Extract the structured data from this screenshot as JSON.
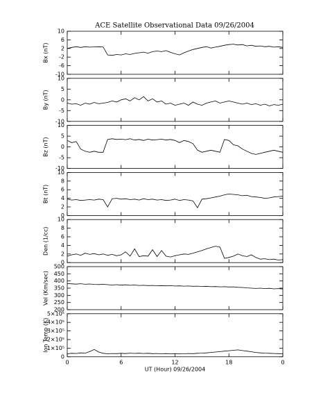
{
  "chart_data": [
    {
      "type": "line",
      "title": "ACE Satellite Observational Data   09/26/2004",
      "ylabel": "Bx (nT)",
      "ylim": [
        -10,
        10
      ],
      "yticks": [
        -10,
        -6,
        -2,
        2,
        6,
        10
      ],
      "color": "#000000",
      "x": [
        0,
        0.5,
        1,
        1.5,
        2,
        2.5,
        3,
        3.5,
        4,
        4.5,
        5,
        5.5,
        6,
        6.5,
        7,
        7.5,
        8,
        8.5,
        9,
        9.5,
        10,
        10.5,
        11,
        11.5,
        12,
        12.5,
        13,
        13.5,
        14,
        14.5,
        15,
        15.5,
        16,
        16.5,
        17,
        17.5,
        18,
        18.5,
        19,
        19.5,
        20,
        20.5,
        21,
        21.5,
        22,
        22.5,
        23,
        23.5,
        24
      ],
      "values": [
        2,
        2.5,
        2.8,
        2.5,
        2.8,
        2.6,
        2.7,
        2.8,
        2.7,
        -1,
        -1.2,
        -0.8,
        -1,
        -0.5,
        -0.8,
        -0.3,
        0,
        0.3,
        -0.2,
        0.5,
        0.8,
        0.5,
        1,
        0.2,
        -0.5,
        -1,
        0,
        0.8,
        1.5,
        2,
        2.5,
        2.8,
        2.2,
        2.6,
        3,
        3.5,
        3.8,
        4,
        3.6,
        3.8,
        3.2,
        3.5,
        3,
        3.2,
        2.8,
        3,
        2.6,
        2.8,
        2.5
      ]
    },
    {
      "type": "line",
      "ylabel": "By (nT)",
      "ylim": [
        -10,
        10
      ],
      "yticks": [
        -10,
        -5,
        0,
        5,
        10
      ],
      "color": "#000000",
      "x": [
        0,
        0.5,
        1,
        1.5,
        2,
        2.5,
        3,
        3.5,
        4,
        4.5,
        5,
        5.5,
        6,
        6.5,
        7,
        7.5,
        8,
        8.5,
        9,
        9.5,
        10,
        10.5,
        11,
        11.5,
        12,
        12.5,
        13,
        13.5,
        14,
        14.5,
        15,
        15.5,
        16,
        16.5,
        17,
        17.5,
        18,
        18.5,
        19,
        19.5,
        20,
        20.5,
        21,
        21.5,
        22,
        22.5,
        23,
        23.5,
        24
      ],
      "values": [
        -1.5,
        -2,
        -1.8,
        -2.5,
        -1.5,
        -2,
        -1.2,
        -1.8,
        -1.5,
        -1.2,
        -0.5,
        -1,
        0,
        0.5,
        -0.5,
        1,
        0,
        1.5,
        -0.5,
        0.5,
        -1,
        -0.5,
        -2,
        -1.5,
        -2.5,
        -2,
        -1.5,
        -2.5,
        -1,
        -2,
        -2.5,
        -1.5,
        -1,
        -0.5,
        -1.5,
        -1,
        -0.5,
        -1,
        -1.5,
        -2,
        -1.5,
        -2.2,
        -1.8,
        -2.5,
        -2,
        -2.8,
        -2.2,
        -2.5,
        -2
      ]
    },
    {
      "type": "line",
      "ylabel": "Bz (nT)",
      "ylim": [
        -10,
        10
      ],
      "yticks": [
        -10,
        -5,
        0,
        5,
        10
      ],
      "color": "#000000",
      "x": [
        0,
        0.5,
        1,
        1.5,
        2,
        2.5,
        3,
        3.5,
        4,
        4.5,
        5,
        5.5,
        6,
        6.5,
        7,
        7.5,
        8,
        8.5,
        9,
        9.5,
        10,
        10.5,
        11,
        11.5,
        12,
        12.5,
        13,
        13.5,
        14,
        14.5,
        15,
        15.5,
        16,
        16.5,
        17,
        17.5,
        18,
        18.5,
        19,
        19.5,
        20,
        20.5,
        21,
        21.5,
        22,
        22.5,
        23,
        23.5,
        24
      ],
      "values": [
        3,
        2,
        2.5,
        -1,
        -2,
        -2.5,
        -2,
        -2.5,
        -2.5,
        3.5,
        3.8,
        3.5,
        3.6,
        3.4,
        3.8,
        3.2,
        3.5,
        3,
        3.6,
        3.2,
        3.4,
        3.6,
        3.2,
        3.5,
        3,
        2,
        3,
        2.5,
        1.5,
        -1.5,
        -2.5,
        -2,
        -1.5,
        -2,
        -2.5,
        3.5,
        3,
        1,
        0.5,
        -1,
        -2,
        -3,
        -3.5,
        -3,
        -2.5,
        -2,
        -1.5,
        -2,
        -2.5
      ]
    },
    {
      "type": "line",
      "ylabel": "Bt (nT)",
      "ylim": [
        0,
        10
      ],
      "yticks": [
        0,
        2,
        4,
        6,
        8,
        10
      ],
      "color": "#000000",
      "x": [
        0,
        0.5,
        1,
        1.5,
        2,
        2.5,
        3,
        3.5,
        4,
        4.5,
        5,
        5.5,
        6,
        6.5,
        7,
        7.5,
        8,
        8.5,
        9,
        9.5,
        10,
        10.5,
        11,
        11.5,
        12,
        12.5,
        13,
        13.5,
        14,
        14.5,
        15,
        15.5,
        16,
        16.5,
        17,
        17.5,
        18,
        18.5,
        19,
        19.5,
        20,
        20.5,
        21,
        21.5,
        22,
        22.5,
        23,
        23.5,
        24
      ],
      "values": [
        3.8,
        3.6,
        3.7,
        3.5,
        3.6,
        3.7,
        3.6,
        3.8,
        3.7,
        2,
        3.9,
        4,
        3.8,
        3.9,
        3.7,
        3.8,
        3.6,
        3.9,
        3.7,
        3.8,
        3.6,
        3.7,
        3.5,
        3.6,
        3.8,
        3.5,
        3.7,
        3.6,
        3.4,
        1.8,
        3.8,
        3.9,
        4.1,
        4.3,
        4.5,
        4.8,
        5,
        4.9,
        4.8,
        4.6,
        4.7,
        4.4,
        4.3,
        4.2,
        4,
        4.1,
        4.3,
        4.4,
        4.5
      ]
    },
    {
      "type": "line",
      "ylabel": "Den (1/cc)",
      "ylim": [
        0,
        10
      ],
      "yticks": [
        0,
        2,
        4,
        6,
        8,
        10
      ],
      "color": "#000000",
      "x": [
        0,
        0.5,
        1,
        1.5,
        2,
        2.5,
        3,
        3.5,
        4,
        4.5,
        5,
        5.5,
        6,
        6.5,
        7,
        7.5,
        8,
        8.5,
        9,
        9.5,
        10,
        10.5,
        11,
        11.5,
        12,
        12.5,
        13,
        13.5,
        14,
        14.5,
        15,
        15.5,
        16,
        16.5,
        17,
        17.5,
        18,
        18.5,
        19,
        19.5,
        20,
        20.5,
        21,
        21.5,
        22,
        22.5,
        23,
        23.5,
        24
      ],
      "values": [
        1.5,
        1.8,
        2,
        1.7,
        2.2,
        1.9,
        2.1,
        1.8,
        2,
        1.7,
        1.9,
        1.6,
        1.8,
        2.5,
        1.5,
        3.2,
        1.4,
        1.6,
        1.5,
        3,
        1.4,
        2.8,
        1.5,
        1.3,
        1.6,
        1.8,
        2,
        1.9,
        2.2,
        2.5,
        2.8,
        3.2,
        3.5,
        3.8,
        3.6,
        1,
        1.2,
        1.5,
        2,
        1.6,
        1.4,
        1.8,
        1.2,
        0.8,
        0.9,
        0.7,
        0.8,
        0.6,
        0.7
      ]
    },
    {
      "type": "line",
      "ylabel": "Vel (Km/sec)",
      "ylim": [
        200,
        500
      ],
      "yticks": [
        200,
        250,
        300,
        350,
        400,
        450,
        500
      ],
      "color": "#000000",
      "x": [
        0,
        0.5,
        1,
        1.5,
        2,
        2.5,
        3,
        3.5,
        4,
        4.5,
        5,
        5.5,
        6,
        6.5,
        7,
        7.5,
        8,
        8.5,
        9,
        9.5,
        10,
        10.5,
        11,
        11.5,
        12,
        12.5,
        13,
        13.5,
        14,
        14.5,
        15,
        15.5,
        16,
        16.5,
        17,
        17.5,
        18,
        18.5,
        19,
        19.5,
        20,
        20.5,
        21,
        21.5,
        22,
        22.5,
        23,
        23.5,
        24
      ],
      "values": [
        382,
        380,
        378,
        381,
        377,
        379,
        376,
        375,
        377,
        374,
        372,
        374,
        371,
        373,
        370,
        372,
        369,
        370,
        368,
        369,
        367,
        368,
        366,
        367,
        365,
        366,
        364,
        365,
        363,
        364,
        362,
        363,
        360,
        361,
        359,
        360,
        358,
        359,
        356,
        355,
        352,
        350,
        348,
        350,
        347,
        349,
        345,
        347,
        344
      ]
    },
    {
      "type": "line",
      "ylabel": "Ion Temp (K)",
      "xlabel": "UT (Hour)  09/26/2004",
      "xlim": [
        0,
        24
      ],
      "xticks": [
        0,
        6,
        12,
        18,
        {
          "value": 24,
          "label": "0"
        }
      ],
      "ylim": [
        0,
        500000
      ],
      "yticks": [
        0,
        {
          "value": 100000,
          "label": "1×10⁵"
        },
        {
          "value": 200000,
          "label": "2×10⁵"
        },
        {
          "value": 300000,
          "label": "3×10⁵"
        },
        {
          "value": 400000,
          "label": "4×10⁵"
        },
        {
          "value": 500000,
          "label": "5×10⁵"
        }
      ],
      "color": "#000000",
      "x": [
        0,
        0.5,
        1,
        1.5,
        2,
        2.5,
        3,
        3.5,
        4,
        4.5,
        5,
        5.5,
        6,
        6.5,
        7,
        7.5,
        8,
        8.5,
        9,
        9.5,
        10,
        10.5,
        11,
        11.5,
        12,
        12.5,
        13,
        13.5,
        14,
        14.5,
        15,
        15.5,
        16,
        16.5,
        17,
        17.5,
        18,
        18.5,
        19,
        19.5,
        20,
        20.5,
        21,
        21.5,
        22,
        22.5,
        23,
        23.5,
        24
      ],
      "values": [
        35000,
        40000,
        38000,
        45000,
        42000,
        60000,
        85000,
        55000,
        40000,
        35000,
        38000,
        36000,
        40000,
        37000,
        42000,
        39000,
        41000,
        38000,
        40000,
        36000,
        38000,
        35000,
        37000,
        34000,
        36000,
        33000,
        35000,
        38000,
        36000,
        40000,
        42000,
        45000,
        50000,
        55000,
        60000,
        65000,
        70000,
        75000,
        80000,
        72000,
        65000,
        58000,
        50000,
        45000,
        42000,
        40000,
        38000,
        36000,
        35000
      ]
    }
  ]
}
